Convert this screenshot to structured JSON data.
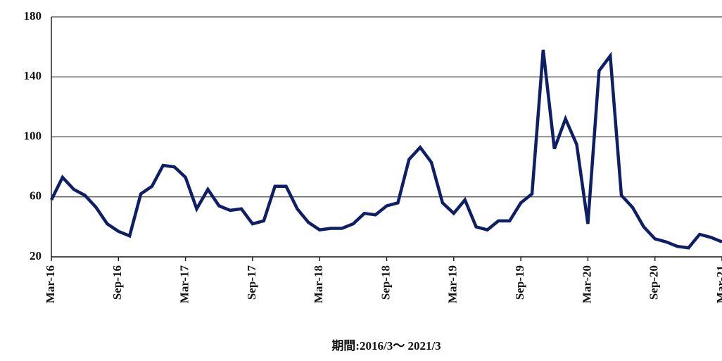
{
  "chart_data": {
    "type": "line",
    "title": "期間:2016/3～ 2021/3",
    "categories": [
      "Mar-16",
      null,
      null,
      null,
      null,
      null,
      "Sep-16",
      null,
      null,
      null,
      null,
      null,
      "Mar-17",
      null,
      null,
      null,
      null,
      null,
      "Sep-17",
      null,
      null,
      null,
      null,
      null,
      "Mar-18",
      null,
      null,
      null,
      null,
      null,
      "Sep-18",
      null,
      null,
      null,
      null,
      null,
      "Mar-19",
      null,
      null,
      null,
      null,
      null,
      "Sep-19",
      null,
      null,
      null,
      null,
      null,
      "Mar-20",
      null,
      null,
      null,
      null,
      null,
      "Sep-20",
      null,
      null,
      null,
      null,
      null,
      "Mar-21"
    ],
    "values": [
      58,
      73,
      65,
      61,
      53,
      42,
      37,
      34,
      62,
      67,
      81,
      80,
      73,
      52,
      65,
      54,
      51,
      52,
      42,
      44,
      67,
      67,
      52,
      43,
      38,
      39,
      39,
      42,
      49,
      48,
      54,
      56,
      85,
      93,
      83,
      56,
      49,
      58,
      40,
      38,
      44,
      44,
      56,
      62,
      158,
      92,
      112,
      95,
      42,
      144,
      154,
      61,
      53,
      40,
      32,
      30,
      27,
      26,
      35,
      33,
      30
    ],
    "color": "#0f1f66",
    "ylim": [
      20,
      180
    ],
    "yticks": [
      20,
      60,
      100,
      140,
      180
    ],
    "grid": true
  }
}
